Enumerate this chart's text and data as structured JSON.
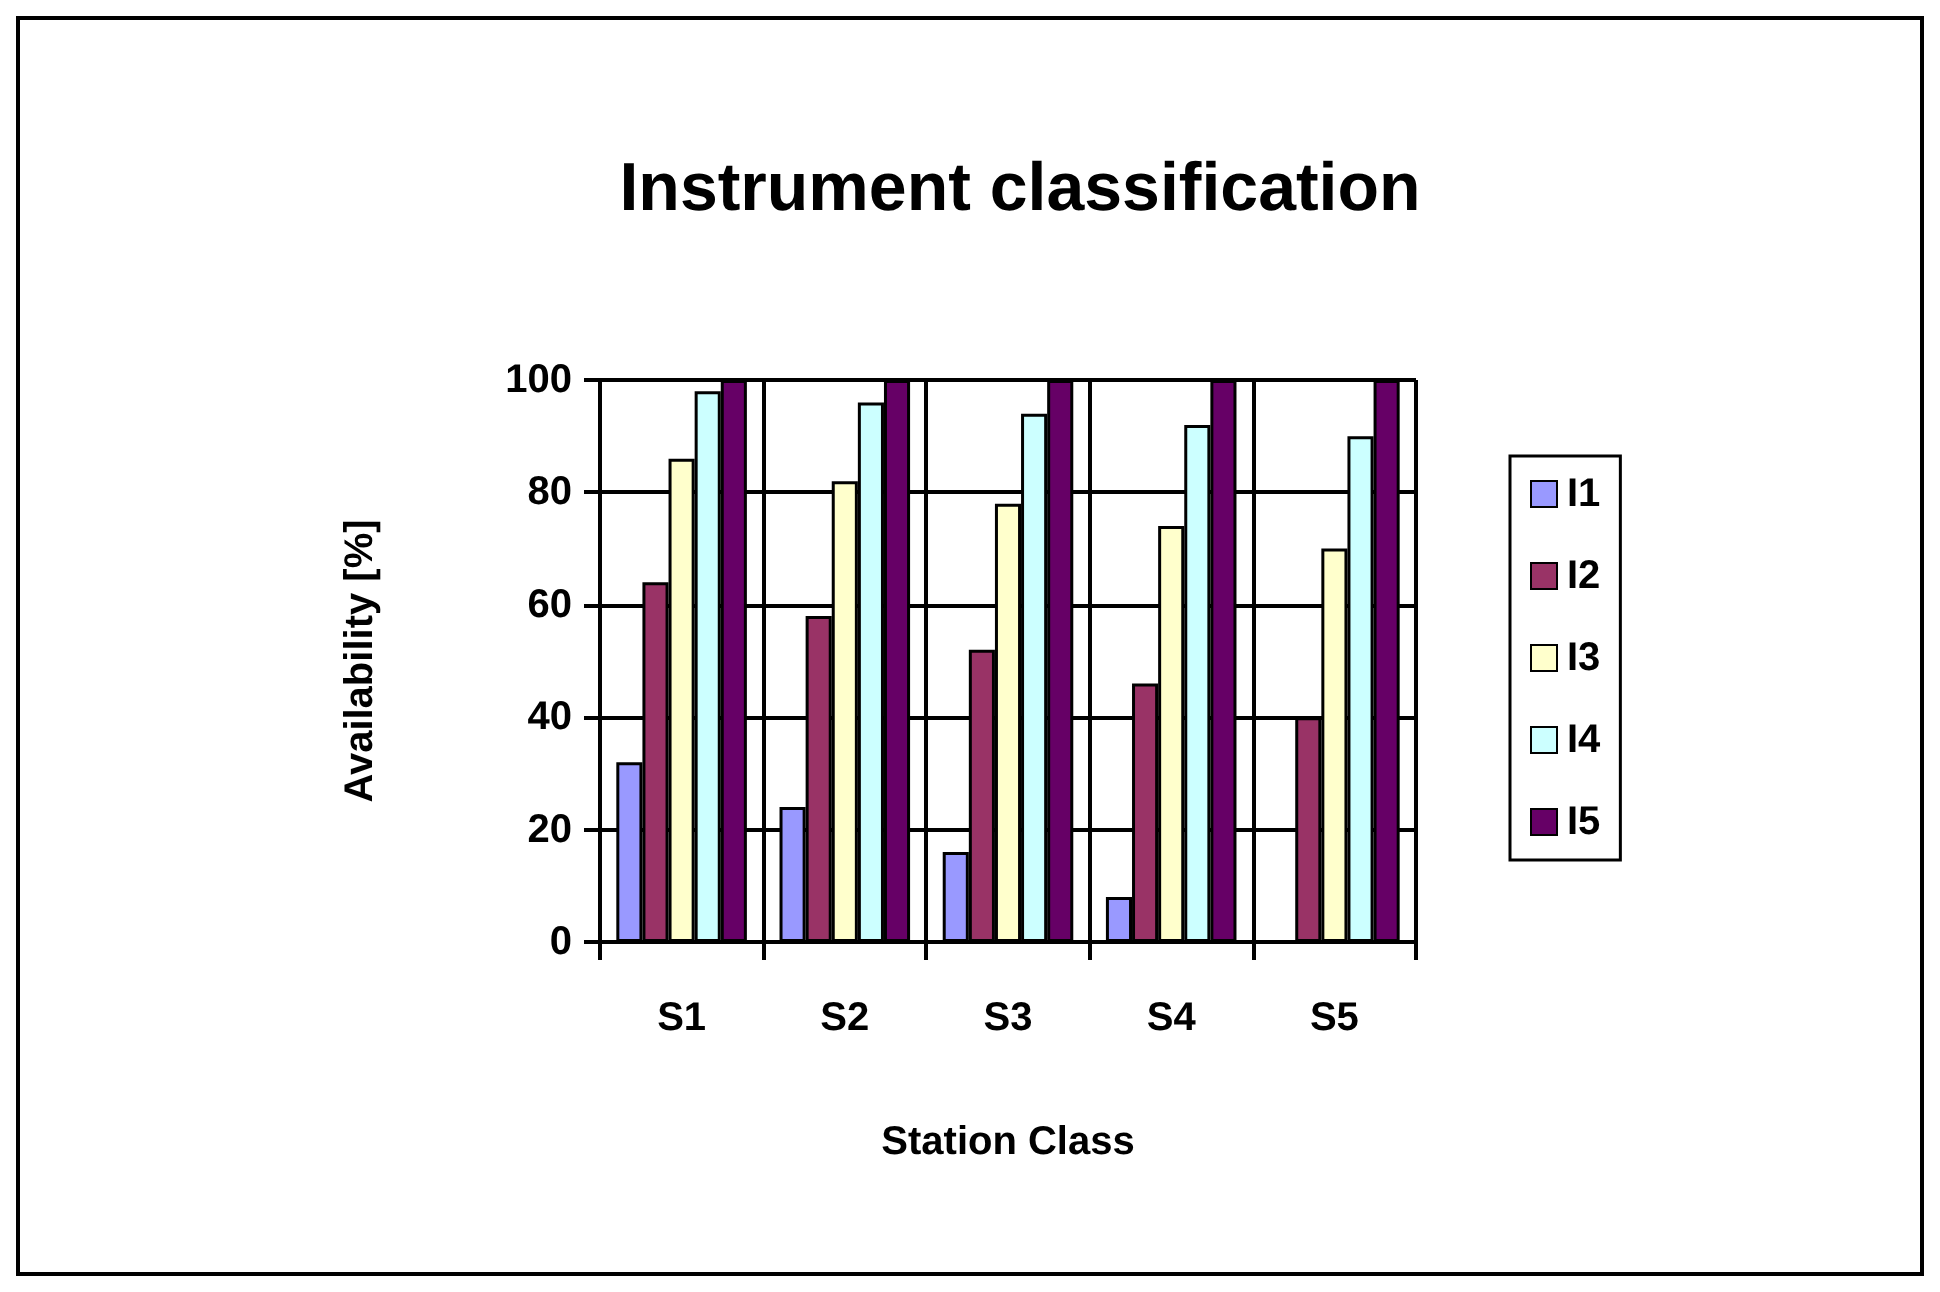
{
  "chart_data": {
    "type": "bar",
    "title": "Instrument classification",
    "xlabel": "Station Class",
    "ylabel": "Availability [%]",
    "categories": [
      "S1",
      "S2",
      "S3",
      "S4",
      "S5"
    ],
    "series": [
      {
        "name": "I1",
        "color": "#9999ff",
        "values": [
          32,
          24,
          16,
          8,
          0
        ]
      },
      {
        "name": "I2",
        "color": "#993366",
        "values": [
          64,
          58,
          52,
          46,
          40
        ]
      },
      {
        "name": "I3",
        "color": "#ffffcc",
        "values": [
          86,
          82,
          78,
          74,
          70
        ]
      },
      {
        "name": "I4",
        "color": "#ccffff",
        "values": [
          98,
          96,
          94,
          92,
          90
        ]
      },
      {
        "name": "I5",
        "color": "#660066",
        "values": [
          100,
          100,
          100,
          100,
          100
        ]
      }
    ],
    "ylim": [
      0,
      100
    ],
    "yticks": [
      0,
      20,
      40,
      60,
      80,
      100
    ],
    "grid": true,
    "legend": "right"
  }
}
